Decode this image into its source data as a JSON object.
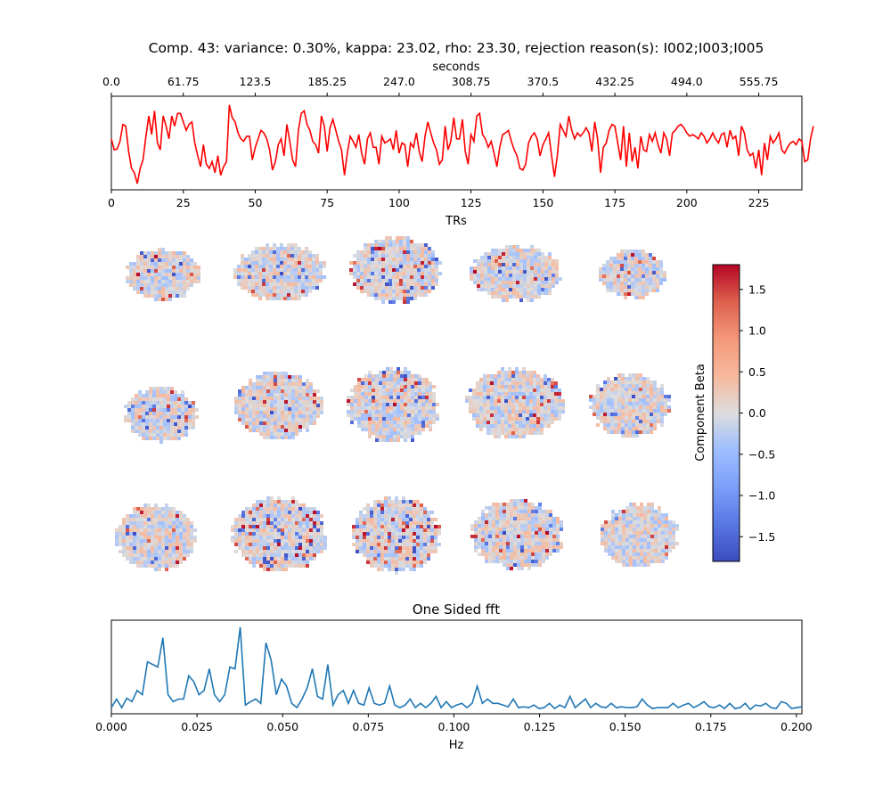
{
  "title": "Comp. 43: variance: 0.30%, kappa: 23.02, rho: 23.30, rejection reason(s): I002;I003;I005",
  "chart_data": [
    {
      "type": "line",
      "color": "#ff0000",
      "xlabel": "TRs",
      "x2label": "seconds",
      "xticks": [
        0,
        25,
        50,
        75,
        100,
        125,
        150,
        175,
        200,
        225
      ],
      "x2ticks": [
        "0.0",
        "61.75",
        "123.5",
        "185.25",
        "247.0",
        "308.75",
        "370.5",
        "432.25",
        "494.0",
        "555.75"
      ],
      "xlim": [
        0,
        240
      ],
      "ylim": [
        0,
        1
      ],
      "y_axis_hidden": true,
      "values": [
        0.55,
        0.42,
        0.43,
        0.52,
        0.72,
        0.7,
        0.4,
        0.2,
        0.15,
        0.02,
        0.2,
        0.3,
        0.58,
        0.82,
        0.6,
        0.88,
        0.5,
        0.42,
        0.82,
        0.7,
        0.55,
        0.82,
        0.7,
        0.85,
        0.85,
        0.75,
        0.65,
        0.72,
        0.75,
        0.5,
        0.35,
        0.22,
        0.48,
        0.25,
        0.2,
        0.28,
        0.15,
        0.35,
        0.12,
        0.22,
        0.28,
        0.95,
        0.8,
        0.75,
        0.62,
        0.55,
        0.52,
        0.58,
        0.58,
        0.3,
        0.45,
        0.55,
        0.65,
        0.62,
        0.55,
        0.42,
        0.18,
        0.28,
        0.48,
        0.55,
        0.35,
        0.72,
        0.52,
        0.3,
        0.22,
        0.65,
        0.85,
        0.88,
        0.72,
        0.65,
        0.52,
        0.48,
        0.38,
        0.82,
        0.7,
        0.4,
        0.68,
        0.78,
        0.65,
        0.52,
        0.42,
        0.12,
        0.38,
        0.58,
        0.52,
        0.45,
        0.6,
        0.38,
        0.25,
        0.55,
        0.62,
        0.45,
        0.45,
        0.25,
        0.58,
        0.5,
        0.52,
        0.55,
        0.42,
        0.65,
        0.38,
        0.5,
        0.48,
        0.22,
        0.5,
        0.45,
        0.62,
        0.4,
        0.28,
        0.58,
        0.75,
        0.62,
        0.5,
        0.42,
        0.25,
        0.3,
        0.7,
        0.42,
        0.52,
        0.8,
        0.55,
        0.55,
        0.78,
        0.4,
        0.25,
        0.6,
        0.52,
        0.82,
        0.85,
        0.6,
        0.55,
        0.45,
        0.52,
        0.38,
        0.22,
        0.45,
        0.6,
        0.62,
        0.65,
        0.52,
        0.42,
        0.35,
        0.2,
        0.18,
        0.25,
        0.5,
        0.58,
        0.62,
        0.55,
        0.35,
        0.48,
        0.55,
        0.62,
        0.35,
        0.1,
        0.35,
        0.72,
        0.65,
        0.58,
        0.82,
        0.65,
        0.55,
        0.62,
        0.58,
        0.62,
        0.68,
        0.62,
        0.4,
        0.75,
        0.55,
        0.15,
        0.45,
        0.5,
        0.65,
        0.72,
        0.7,
        0.5,
        0.3,
        0.7,
        0.22,
        0.62,
        0.28,
        0.45,
        0.2,
        0.58,
        0.42,
        0.4,
        0.6,
        0.52,
        0.62,
        0.48,
        0.38,
        0.62,
        0.55,
        0.35,
        0.62,
        0.65,
        0.7,
        0.72,
        0.68,
        0.62,
        0.58,
        0.6,
        0.58,
        0.55,
        0.62,
        0.58,
        0.5,
        0.55,
        0.62,
        0.55,
        0.5,
        0.6,
        0.62,
        0.45,
        0.65,
        0.55,
        0.58,
        0.35,
        0.7,
        0.62,
        0.42,
        0.35,
        0.38,
        0.2,
        0.42,
        0.12,
        0.5,
        0.3,
        0.58,
        0.5,
        0.55,
        0.62,
        0.42,
        0.38,
        0.45,
        0.5,
        0.52,
        0.48,
        0.55,
        0.52,
        0.28,
        0.3,
        0.55,
        0.7
      ]
    },
    {
      "type": "heatmap",
      "colorbar_label": "Component Beta",
      "colorbar_ticks": [
        1.5,
        1.0,
        0.5,
        0.0,
        -0.5,
        -1.0,
        -1.5
      ],
      "colorbar_tick_labels": [
        "1.5",
        "1.0",
        "0.5",
        "0.0",
        "−0.5",
        "−1.0",
        "−1.5"
      ],
      "vmin": -1.8,
      "vmax": 1.8,
      "colormap": "coolwarm",
      "rows": 3,
      "cols": 5
    },
    {
      "type": "line",
      "title": "One Sided fft",
      "color": "#1f77b4",
      "xlabel": "Hz",
      "xticks": [
        "0.000",
        "0.025",
        "0.050",
        "0.075",
        "0.100",
        "0.125",
        "0.150",
        "0.175",
        "0.200"
      ],
      "xlim": [
        0,
        0.2016
      ],
      "ylim": [
        0,
        1
      ],
      "y_axis_hidden": true,
      "values": [
        0.05,
        0.15,
        0.05,
        0.16,
        0.12,
        0.25,
        0.2,
        0.58,
        0.55,
        0.52,
        0.86,
        0.2,
        0.12,
        0.15,
        0.15,
        0.42,
        0.35,
        0.2,
        0.25,
        0.5,
        0.2,
        0.12,
        0.2,
        0.52,
        0.5,
        0.98,
        0.08,
        0.12,
        0.15,
        0.1,
        0.8,
        0.6,
        0.2,
        0.38,
        0.3,
        0.1,
        0.05,
        0.15,
        0.28,
        0.5,
        0.18,
        0.15,
        0.55,
        0.08,
        0.2,
        0.25,
        0.1,
        0.25,
        0.1,
        0.08,
        0.28,
        0.1,
        0.08,
        0.1,
        0.3,
        0.08,
        0.05,
        0.08,
        0.15,
        0.05,
        0.1,
        0.05,
        0.1,
        0.18,
        0.05,
        0.12,
        0.05,
        0.08,
        0.1,
        0.05,
        0.1,
        0.3,
        0.1,
        0.15,
        0.1,
        0.1,
        0.08,
        0.06,
        0.15,
        0.05,
        0.06,
        0.05,
        0.08,
        0.04,
        0.05,
        0.1,
        0.04,
        0.08,
        0.05,
        0.18,
        0.05,
        0.1,
        0.15,
        0.05,
        0.1,
        0.06,
        0.05,
        0.1,
        0.05,
        0.06,
        0.05,
        0.05,
        0.06,
        0.15,
        0.08,
        0.04,
        0.05,
        0.05,
        0.05,
        0.1,
        0.05,
        0.08,
        0.1,
        0.05,
        0.08,
        0.12,
        0.06,
        0.05,
        0.08,
        0.04,
        0.1,
        0.04,
        0.05,
        0.1,
        0.03,
        0.08,
        0.07,
        0.1,
        0.05,
        0.04,
        0.12,
        0.1,
        0.04,
        0.05,
        0.06
      ]
    }
  ]
}
